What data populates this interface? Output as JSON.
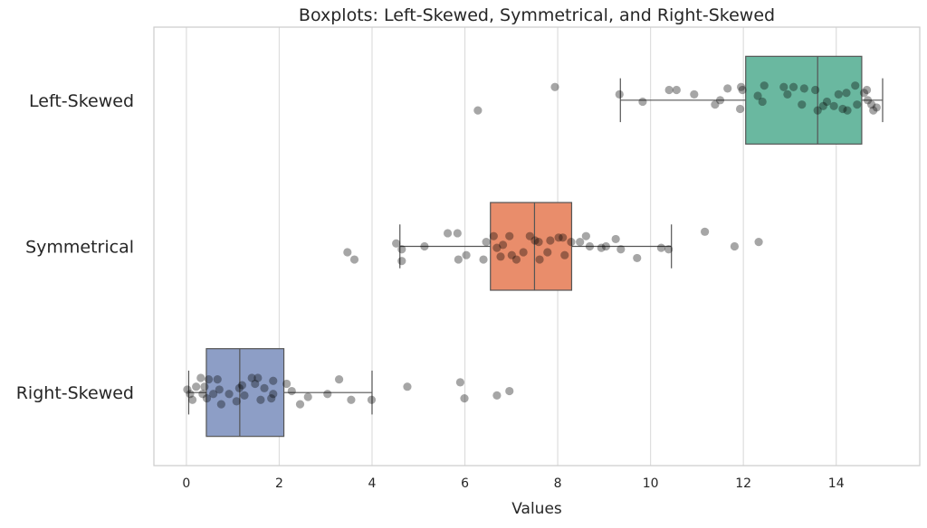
{
  "chart_data": {
    "type": "box",
    "orientation": "horizontal",
    "title": "Boxplots: Left-Skewed, Symmetrical, and Right-Skewed",
    "xlabel": "Values",
    "ylabel": "",
    "xlim": [
      -0.7,
      15.8
    ],
    "xticks": [
      0,
      2,
      4,
      6,
      8,
      10,
      12,
      14
    ],
    "grid": "vertical",
    "point_color": "#000000",
    "point_opacity": 0.35,
    "groups": [
      {
        "label": "Left-Skewed",
        "color": "#6ab8a0",
        "q1": 12.05,
        "median": 13.6,
        "q3": 14.55,
        "whisker_low": 9.35,
        "whisker_high": 15.0,
        "points": [
          [
            7.94,
            -0.09
          ],
          [
            6.28,
            0.07
          ],
          [
            9.33,
            -0.04
          ],
          [
            9.83,
            0.01
          ],
          [
            10.4,
            -0.07
          ],
          [
            10.56,
            -0.07
          ],
          [
            10.94,
            -0.04
          ],
          [
            11.39,
            0.03
          ],
          [
            11.5,
            0
          ],
          [
            11.66,
            -0.08
          ],
          [
            11.95,
            -0.09
          ],
          [
            11.98,
            -0.07
          ],
          [
            11.93,
            0.06
          ],
          [
            12.31,
            -0.03
          ],
          [
            12.41,
            0.01
          ],
          [
            12.45,
            -0.1
          ],
          [
            12.87,
            -0.09
          ],
          [
            12.95,
            -0.04
          ],
          [
            13.08,
            -0.09
          ],
          [
            13.31,
            -0.08
          ],
          [
            13.26,
            0.03
          ],
          [
            13.55,
            -0.07
          ],
          [
            13.6,
            0.07
          ],
          [
            13.72,
            0.04
          ],
          [
            13.8,
            0.01
          ],
          [
            13.95,
            0.04
          ],
          [
            14.05,
            -0.04
          ],
          [
            14.14,
            0.06
          ],
          [
            14.22,
            -0.05
          ],
          [
            14.24,
            0.07
          ],
          [
            14.41,
            -0.1
          ],
          [
            14.45,
            0.03
          ],
          [
            14.6,
            -0.05
          ],
          [
            14.66,
            -0.07
          ],
          [
            14.68,
            0
          ],
          [
            14.76,
            0.03
          ],
          [
            14.8,
            0.07
          ],
          [
            14.87,
            0.05
          ]
        ]
      },
      {
        "label": "Symmetrical",
        "color": "#e98d6b",
        "q1": 6.55,
        "median": 7.5,
        "q3": 8.3,
        "whisker_low": 4.6,
        "whisker_high": 10.45,
        "points": [
          [
            3.47,
            0.04
          ],
          [
            3.62,
            0.09
          ],
          [
            4.52,
            -0.02
          ],
          [
            4.64,
            0.02
          ],
          [
            4.64,
            0.1
          ],
          [
            5.13,
            0
          ],
          [
            5.63,
            -0.09
          ],
          [
            5.84,
            -0.09
          ],
          [
            5.86,
            0.09
          ],
          [
            6.03,
            0.06
          ],
          [
            6.4,
            0.09
          ],
          [
            6.46,
            -0.03
          ],
          [
            6.62,
            -0.07
          ],
          [
            6.69,
            0.01
          ],
          [
            6.77,
            0.07
          ],
          [
            6.82,
            -0.01
          ],
          [
            6.96,
            -0.07
          ],
          [
            7.01,
            0.06
          ],
          [
            7.11,
            0.09
          ],
          [
            7.26,
            0.04
          ],
          [
            7.4,
            -0.07
          ],
          [
            7.51,
            -0.04
          ],
          [
            7.59,
            -0.03
          ],
          [
            7.61,
            0.09
          ],
          [
            7.78,
            0.04
          ],
          [
            7.84,
            -0.04
          ],
          [
            8.02,
            -0.06
          ],
          [
            8.11,
            -0.06
          ],
          [
            8.15,
            0.06
          ],
          [
            8.29,
            -0.03
          ],
          [
            8.48,
            -0.03
          ],
          [
            8.61,
            -0.07
          ],
          [
            8.69,
            0
          ],
          [
            8.94,
            0.01
          ],
          [
            9.04,
            0
          ],
          [
            9.25,
            -0.05
          ],
          [
            9.36,
            0.02
          ],
          [
            9.71,
            0.08
          ],
          [
            10.23,
            0.01
          ],
          [
            10.39,
            0.02
          ],
          [
            11.17,
            -0.1
          ],
          [
            11.81,
            0
          ],
          [
            12.33,
            -0.03
          ]
        ]
      },
      {
        "label": "Right-Skewed",
        "color": "#8d9ec6",
        "q1": 0.43,
        "median": 1.15,
        "q3": 2.1,
        "whisker_low": 0.05,
        "whisker_high": 4.0,
        "points": [
          [
            0.02,
            -0.02
          ],
          [
            0.08,
            0.01
          ],
          [
            0.13,
            0.05
          ],
          [
            0.21,
            -0.04
          ],
          [
            0.31,
            -0.1
          ],
          [
            0.35,
            0.01
          ],
          [
            0.39,
            -0.04
          ],
          [
            0.44,
            0.04
          ],
          [
            0.48,
            -0.09
          ],
          [
            0.58,
            0.01
          ],
          [
            0.67,
            -0.09
          ],
          [
            0.71,
            -0.02
          ],
          [
            0.75,
            0.08
          ],
          [
            0.92,
            0.01
          ],
          [
            1.08,
            0.06
          ],
          [
            1.14,
            -0.03
          ],
          [
            1.2,
            -0.05
          ],
          [
            1.25,
            0.02
          ],
          [
            1.41,
            -0.1
          ],
          [
            1.48,
            -0.06
          ],
          [
            1.54,
            -0.1
          ],
          [
            1.6,
            0.05
          ],
          [
            1.68,
            -0.03
          ],
          [
            1.83,
            0.04
          ],
          [
            1.87,
            0.01
          ],
          [
            1.87,
            -0.08
          ],
          [
            2.16,
            -0.06
          ],
          [
            2.27,
            -0.01
          ],
          [
            2.45,
            0.08
          ],
          [
            2.62,
            0.03
          ],
          [
            3.04,
            0.01
          ],
          [
            3.29,
            -0.09
          ],
          [
            3.55,
            0.05
          ],
          [
            3.99,
            0.05
          ],
          [
            4.76,
            -0.04
          ],
          [
            5.9,
            -0.07
          ],
          [
            5.99,
            0.04
          ],
          [
            6.69,
            0.02
          ],
          [
            6.96,
            -0.01
          ]
        ]
      }
    ]
  }
}
